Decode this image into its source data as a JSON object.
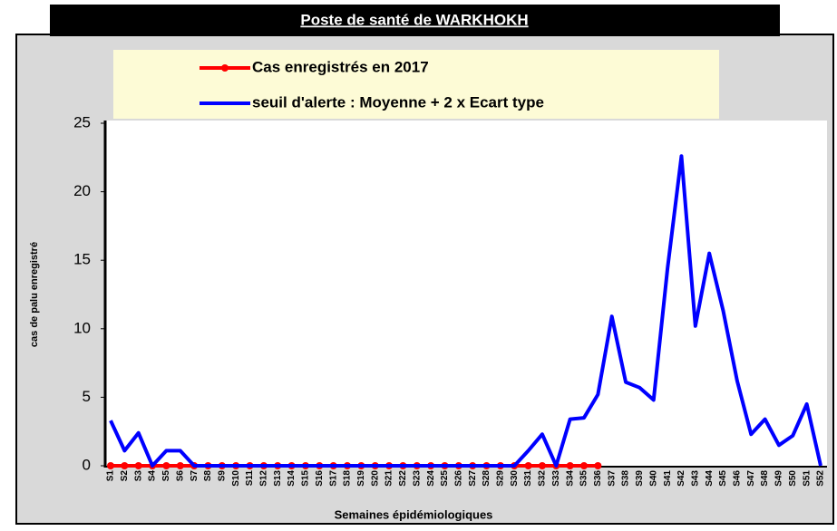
{
  "chart_data": {
    "type": "line",
    "title": "Poste de santé de WARKHOKH",
    "x_label": "Semaines épidémiologiques",
    "y_label": "cas de palu enregistré",
    "categories": [
      "S1",
      "S2",
      "S3",
      "S4",
      "S5",
      "S6",
      "S7",
      "S8",
      "S9",
      "S10",
      "S11",
      "S12",
      "S13",
      "S14",
      "S15",
      "S16",
      "S17",
      "S18",
      "S19",
      "S20",
      "S21",
      "S22",
      "S23",
      "S24",
      "S25",
      "S26",
      "S27",
      "S28",
      "S29",
      "S30",
      "S31",
      "S32",
      "S33",
      "S34",
      "S35",
      "S36",
      "S37",
      "S38",
      "S39",
      "S40",
      "S41",
      "S42",
      "S43",
      "S44",
      "S45",
      "S46",
      "S47",
      "S48",
      "S49",
      "S50",
      "S51",
      "S52"
    ],
    "series": [
      {
        "name": "Cas enregistrés en 2017",
        "color": "#ff0000",
        "marker": true,
        "values": [
          0,
          0,
          0,
          0,
          0,
          0,
          0,
          0,
          0,
          0,
          0,
          0,
          0,
          0,
          0,
          0,
          0,
          0,
          0,
          0,
          0,
          0,
          0,
          0,
          0,
          0,
          0,
          0,
          0,
          0,
          0,
          0,
          0,
          0,
          0,
          0,
          null,
          null,
          null,
          null,
          null,
          null,
          null,
          null,
          null,
          null,
          null,
          null,
          null,
          null,
          null,
          null
        ]
      },
      {
        "name": "seuil d'alerte : Moyenne + 2 x Ecart type",
        "color": "#0000ff",
        "marker": false,
        "values": [
          3.3,
          1.1,
          2.4,
          0,
          1.1,
          1.1,
          0,
          0,
          0,
          0,
          0,
          0,
          0,
          0,
          0,
          0,
          0,
          0,
          0,
          0,
          0,
          0,
          0,
          0,
          0,
          0,
          0,
          0,
          0,
          0,
          1.1,
          2.3,
          0,
          3.4,
          3.5,
          5.2,
          10.9,
          6.1,
          5.7,
          4.8,
          14.4,
          22.6,
          10.2,
          15.5,
          11.3,
          6.2,
          2.3,
          3.4,
          1.5,
          2.2,
          4.5,
          0
        ]
      }
    ],
    "ylim": [
      0,
      25
    ],
    "yticks": [
      0,
      5,
      10,
      15,
      20,
      25
    ],
    "grid": false
  }
}
